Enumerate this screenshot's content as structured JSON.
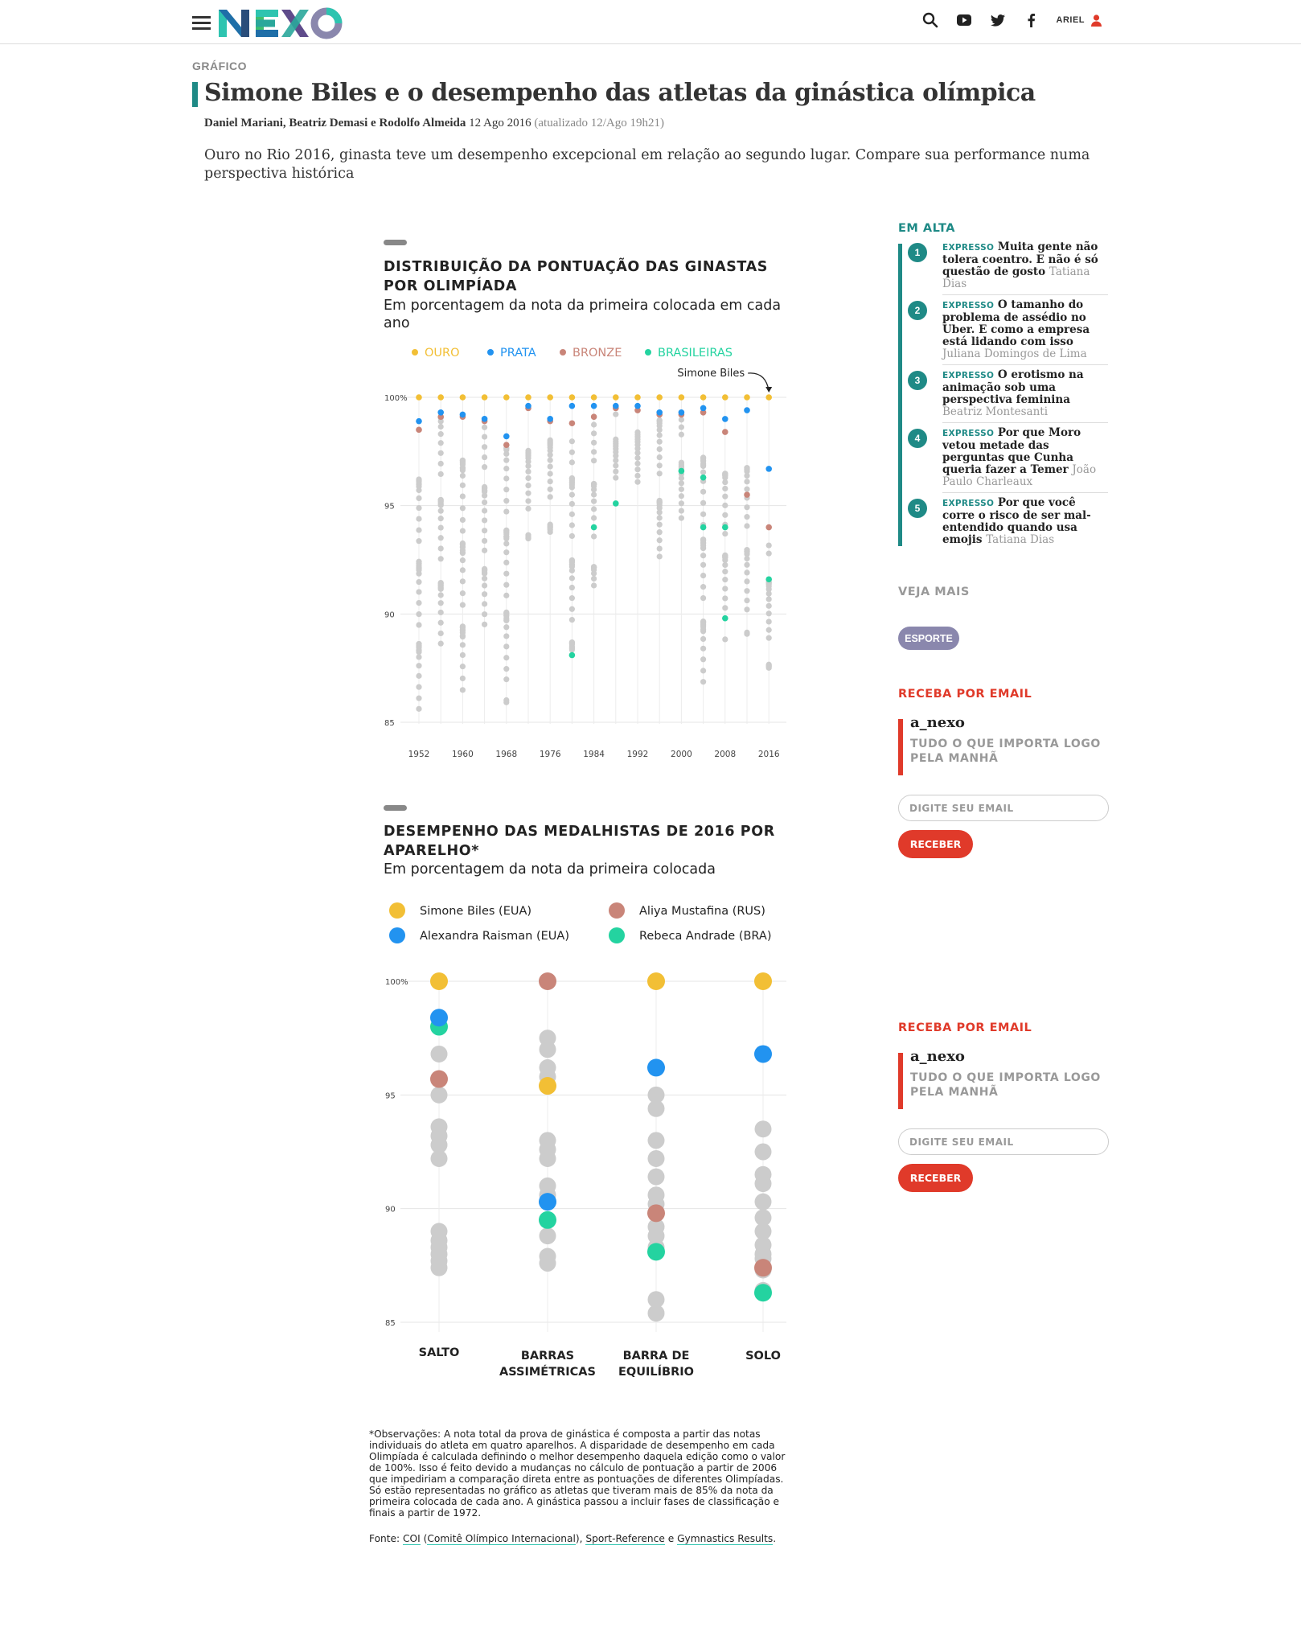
{
  "header": {
    "logo_text": "NEXO",
    "user_name": "ARIEL",
    "icons": [
      "menu-icon",
      "search-icon",
      "youtube-icon",
      "twitter-icon",
      "facebook-icon",
      "user-icon"
    ]
  },
  "article": {
    "kicker": "GRÁFICO",
    "title": "Simone Biles e o desempenho das atletas da ginástica olímpica",
    "authors": "Daniel Mariani, Beatriz Demasi e Rodolfo Almeida",
    "date": "12 Ago 2016",
    "updated": "(atualizado 12/Ago 19h21)",
    "lead": "Ouro no Rio 2016, ginasta teve um desempenho excepcional em relação ao segundo lugar. Compare sua performance numa perspectiva histórica"
  },
  "colors": {
    "gold": "#f2bf35",
    "silver": "#2293f0",
    "bronze": "#c98579",
    "brazil": "#24d3a0",
    "other": "#cccccc",
    "teal": "#1f8a86",
    "red": "#e03a2a"
  },
  "chart_data": [
    {
      "type": "scatter",
      "title": "DISTRIBUIÇÃO DA PONTUAÇÃO DAS GINASTAS POR OLIMPÍADA",
      "subtitle": "Em porcentagem da nota da primeira colocada em cada ano",
      "legend": [
        {
          "name": "OURO",
          "color": "#f2bf35"
        },
        {
          "name": "PRATA",
          "color": "#2293f0"
        },
        {
          "name": "BRONZE",
          "color": "#c98579"
        },
        {
          "name": "BRASILEIRAS",
          "color": "#24d3a0"
        }
      ],
      "annotation": "Simone Biles",
      "x_tick_labels": [
        "1952",
        "1960",
        "1968",
        "1976",
        "1984",
        "1992",
        "2000",
        "2008",
        "2016"
      ],
      "y_tick_labels": [
        "100%",
        "95",
        "90",
        "85"
      ],
      "ylim": [
        85,
        100
      ],
      "years": [
        1952,
        1956,
        1960,
        1964,
        1968,
        1972,
        1976,
        1980,
        1984,
        1988,
        1992,
        1996,
        2000,
        2004,
        2008,
        2012,
        2016
      ],
      "medalists": {
        "gold": [
          100,
          100,
          100,
          100,
          100,
          100,
          100,
          100,
          100,
          100,
          100,
          100,
          100,
          100,
          100,
          100,
          100
        ],
        "silver": [
          98.9,
          99.6,
          99.5,
          99.3,
          98.2,
          99.9,
          99.3,
          99.9,
          99.9,
          99.9,
          99.9,
          99.6,
          99.6,
          99.8,
          99.0,
          99.7,
          96.7
        ],
        "bronze": [
          98.8,
          99.4,
          99.4,
          99.2,
          98.1,
          99.8,
          99.2,
          99.1,
          99.4,
          99.8,
          99.7,
          99.5,
          99.5,
          99.6,
          98.7,
          95.8,
          94.3
        ]
      },
      "brazilians": [
        {
          "year": 1988,
          "value": 95.1
        },
        {
          "year": 2000,
          "value": 96.6
        },
        {
          "year": 2004,
          "value": 96.3
        },
        {
          "year": 2004,
          "value": 94.0
        },
        {
          "year": 2008,
          "value": 94.0
        },
        {
          "year": 2008,
          "value": 89.8
        },
        {
          "year": 2016,
          "value": 91.6
        },
        {
          "year": 1984,
          "value": 94.0
        },
        {
          "year": 1980,
          "value": 88.1
        }
      ],
      "others_ranges": [
        [
          85.2,
          98.0
        ],
        [
          87.8,
          99.3
        ],
        [
          85.1,
          99.0
        ],
        [
          87.8,
          98.9
        ],
        [
          85.2,
          98.0
        ],
        [
          92.8,
          99.1
        ],
        [
          92.9,
          99.2
        ],
        [
          86.6,
          98.9
        ],
        [
          90.1,
          99.2
        ],
        [
          95.9,
          99.9
        ],
        [
          95.9,
          99.6
        ],
        [
          92.2,
          99.5
        ],
        [
          93.6,
          99.3
        ],
        [
          85.3,
          98.3
        ],
        [
          88.4,
          98.3
        ],
        [
          88.3,
          98.0
        ],
        [
          86.6,
          93.8
        ]
      ]
    },
    {
      "type": "scatter",
      "title": "DESEMPENHO DAS MEDALHISTAS DE 2016 POR APARELHO*",
      "subtitle": "Em porcentagem da nota da primeira colocada",
      "categories": [
        "SALTO",
        "BARRAS ASSIMÉTRICAS",
        "BARRA DE EQUILÍBRIO",
        "SOLO"
      ],
      "y_tick_labels": [
        "100%",
        "95",
        "90",
        "85"
      ],
      "ylim": [
        85,
        100
      ],
      "series": [
        {
          "name": "Simone Biles (EUA)",
          "color": "#f2bf35",
          "values": [
            100,
            95.4,
            100,
            100
          ]
        },
        {
          "name": "Alexandra Raisman (EUA)",
          "color": "#2293f0",
          "values": [
            98.4,
            90.3,
            96.2,
            96.8
          ]
        },
        {
          "name": "Aliya Mustafina (RUS)",
          "color": "#c98579",
          "values": [
            95.7,
            100,
            89.8,
            87.4
          ]
        },
        {
          "name": "Rebeca Andrade (BRA)",
          "color": "#24d3a0",
          "values": [
            98.0,
            89.5,
            88.1,
            86.3
          ]
        }
      ],
      "others": [
        [
          96.8,
          95.0,
          93.6,
          93.2,
          92.8,
          92.2,
          89.0,
          88.6,
          88.3,
          88.0,
          87.7,
          87.4
        ],
        [
          97.5,
          97.0,
          96.2,
          95.8,
          93.0,
          92.6,
          92.2,
          91.0,
          90.6,
          88.8,
          87.9,
          87.6
        ],
        [
          95.0,
          94.4,
          93.0,
          92.2,
          91.4,
          90.6,
          90.2,
          89.2,
          88.8,
          88.3,
          86.0,
          85.4
        ],
        [
          93.5,
          92.5,
          91.5,
          91.1,
          90.3,
          89.6,
          89.0,
          88.4,
          88.0,
          87.8,
          87.3,
          86.4
        ]
      ]
    }
  ],
  "footnote": "*Observações: A nota total da prova de ginástica é composta a partir das notas individuais do atleta em quatro aparelhos. A disparidade de desempenho em cada Olimpíada é calculada definindo o melhor desempenho daquela edição como o valor de 100%. Isso é feito devido a mudanças no cálculo de pontuação a partir de 2006 que impediriam a comparação direta entre as pontuações de diferentes Olimpíadas. Só estão representadas no gráfico as atletas que tiveram mais de 85% da nota da primeira colocada de cada ano. A ginástica passou a incluir fases de classificação e finais a partir de 1972.",
  "source": {
    "prefix": "Fonte: ",
    "link1": "COI",
    "link1_paren": " (",
    "link1b": "Comitê Olímpico Internacional",
    "sep1": "), ",
    "link2": "Sport-Reference",
    "sep2": " e ",
    "link3": "Gymnastics Results",
    "end": "."
  },
  "sidebar": {
    "trending_heading": "EM ALTA",
    "trending": [
      {
        "num": "1",
        "tag": "EXPRESSO",
        "title": "Muita gente não tolera coentro. E não é só questão de gosto",
        "author": "Tatiana Dias"
      },
      {
        "num": "2",
        "tag": "EXPRESSO",
        "title": "O tamanho do problema de assédio no Uber. E como a empresa está lidando com isso",
        "author": "Juliana Domingos de Lima"
      },
      {
        "num": "3",
        "tag": "EXPRESSO",
        "title": "O erotismo na animação sob uma perspectiva feminina",
        "author": "Beatriz Montesanti"
      },
      {
        "num": "4",
        "tag": "EXPRESSO",
        "title": "Por que Moro vetou metade das perguntas que Cunha queria fazer a Temer",
        "author": "João Paulo Charleaux"
      },
      {
        "num": "5",
        "tag": "EXPRESSO",
        "title": "Por que você corre o risco de ser mal-entendido quando usa emojis",
        "author": "Tatiana Dias"
      }
    ],
    "see_more_heading": "VEJA MAIS",
    "tag": "ESPORTE",
    "newsletters": [
      {
        "heading": "RECEBA POR EMAIL",
        "name": "a_nexo",
        "desc": "TUDO O QUE IMPORTA LOGO PELA MANHÃ",
        "placeholder": "DIGITE SEU EMAIL",
        "button": "RECEBER"
      },
      {
        "heading": "RECEBA POR EMAIL",
        "name": "a_nexo",
        "desc": "TUDO O QUE IMPORTA LOGO PELA MANHÃ",
        "placeholder": "DIGITE SEU EMAIL",
        "button": "RECEBER"
      }
    ]
  }
}
